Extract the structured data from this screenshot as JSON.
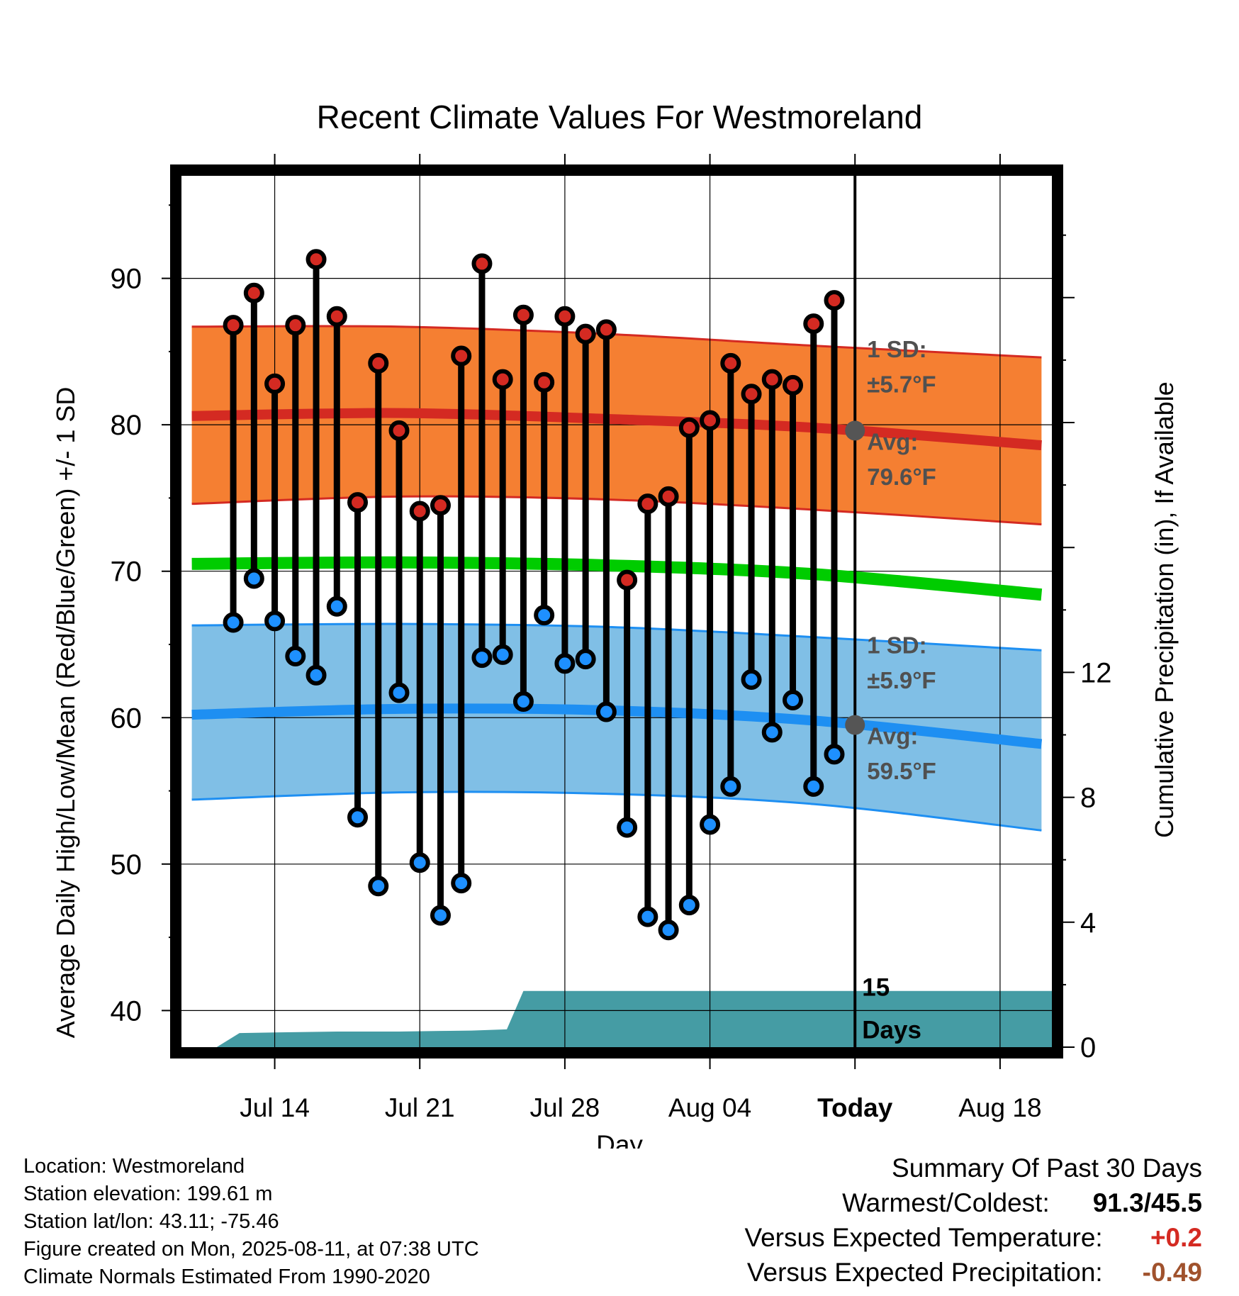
{
  "chart_data": {
    "type": "line",
    "title": "Recent Climate Values For Westmoreland",
    "xlabel": "Day",
    "ylabel_left": "Average Daily High/Low/Mean (Red/Blue/Green) +/- 1 SD",
    "ylabel_right": "Cumulative Precipitation (in), If Available",
    "ylim_left": [
      37.5,
      97
    ],
    "ylim_right": [
      0,
      27.9
    ],
    "x_range_days": [
      -1.5,
      40.5
    ],
    "y_ticks_left": [
      40,
      50,
      60,
      70,
      80,
      90
    ],
    "y_ticks_right": [
      0,
      4,
      8,
      12
    ],
    "x_ticks": [
      {
        "day": 3,
        "label": "Jul 14"
      },
      {
        "day": 10,
        "label": "Jul 21"
      },
      {
        "day": 17,
        "label": "Jul 28"
      },
      {
        "day": 24,
        "label": "Aug 04"
      },
      {
        "day": 31,
        "label": "Today"
      },
      {
        "day": 38,
        "label": "Aug 18"
      }
    ],
    "today_day": 31,
    "days": [
      1,
      2,
      3,
      4,
      5,
      6,
      7,
      8,
      9,
      10,
      11,
      12,
      13,
      14,
      15,
      16,
      17,
      18,
      19,
      20,
      21,
      22,
      23,
      24,
      25,
      26,
      27,
      28,
      29,
      30
    ],
    "daily_high": [
      86.8,
      89.0,
      82.8,
      86.8,
      91.3,
      87.4,
      74.7,
      84.2,
      79.6,
      74.1,
      74.5,
      84.7,
      91.0,
      83.1,
      87.5,
      82.9,
      87.4,
      86.2,
      86.5,
      69.4,
      74.6,
      75.1,
      79.8,
      80.3,
      84.2,
      82.1,
      83.1,
      82.7,
      86.9,
      88.5
    ],
    "daily_low": [
      66.5,
      69.5,
      66.6,
      64.2,
      62.9,
      67.6,
      53.2,
      48.5,
      61.7,
      50.1,
      46.5,
      48.7,
      64.1,
      64.3,
      61.1,
      67.0,
      63.7,
      64.0,
      60.4,
      52.5,
      46.4,
      45.5,
      47.2,
      52.7,
      55.3,
      62.6,
      59.0,
      61.2,
      55.3,
      57.5
    ],
    "normal_days": [
      -1,
      9,
      19,
      29,
      40
    ],
    "normal_high_avg": [
      80.6,
      80.8,
      80.4,
      79.8,
      78.6
    ],
    "normal_high_upper": [
      86.7,
      86.7,
      86.2,
      85.4,
      84.6
    ],
    "normal_high_lower": [
      74.6,
      75.1,
      74.9,
      74.2,
      73.2
    ],
    "normal_mean": [
      70.5,
      70.6,
      70.4,
      69.8,
      68.4
    ],
    "normal_low_avg": [
      60.2,
      60.6,
      60.5,
      59.8,
      58.2
    ],
    "normal_low_upper": [
      66.3,
      66.4,
      66.2,
      65.5,
      64.6
    ],
    "normal_low_lower": [
      54.4,
      54.9,
      54.8,
      54.1,
      52.3
    ],
    "precip_days": [
      0.2,
      1.3,
      3,
      6,
      9,
      11,
      12.5,
      14.2,
      15,
      40.5
    ],
    "precip_cumulative": [
      0.0,
      0.45,
      0.47,
      0.5,
      0.5,
      0.52,
      0.53,
      0.57,
      1.8,
      1.8
    ],
    "high_sd_label": "1 SD:",
    "high_sd_value": "±5.7°F",
    "high_avg_label": "Avg:",
    "high_avg_value": "79.6°F",
    "low_sd_label": "1 SD:",
    "low_sd_value": "±5.9°F",
    "low_avg_label": "Avg:",
    "low_avg_value": "59.5°F",
    "today_high_avg": 79.6,
    "today_low_avg": 59.5,
    "days_count_label": "15",
    "days_label": "Days",
    "colors": {
      "high_band": "#f57f32",
      "high_line": "#d42a22",
      "low_band": "#80bfe6",
      "low_line": "#1e8ff2",
      "mean_line": "#00cc00",
      "precip_fill": "#459ca4",
      "high_dot": "#d42a22",
      "low_dot": "#1e90ff",
      "label_gray": "#505050"
    }
  },
  "footer": {
    "location": "Location: Westmoreland",
    "elevation": "Station elevation: 199.61 m",
    "latlon": "Station lat/lon: 43.11; -75.46",
    "created": "Figure created on Mon, 2025-08-11, at 07:38 UTC",
    "normals": "Climate Normals Estimated From 1990-2020"
  },
  "summary": {
    "title": "Summary Of Past 30 Days",
    "warmest_label": "Warmest/Coldest:",
    "warmest_value": "91.3/45.5",
    "temp_label": "Versus Expected Temperature:",
    "temp_value": "+0.2",
    "temp_color": "#d42a22",
    "precip_label": "Versus Expected Precipitation:",
    "precip_value": "-0.49",
    "precip_color": "#a0522d"
  }
}
